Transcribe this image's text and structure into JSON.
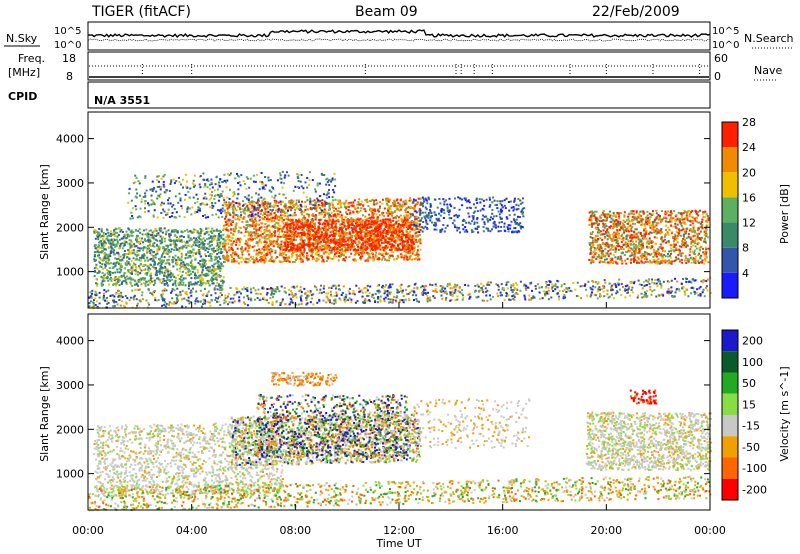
{
  "header": {
    "radar": "TIGER (fitACF)",
    "beam": "Beam 09",
    "date": "22/Feb/2009"
  },
  "status_panels": {
    "nsky_label": "N.Sky",
    "nsearch_label": "N.Search",
    "noise_ticks": [
      "10^5",
      "10^0"
    ],
    "freq_label_1": "Freq.",
    "freq_label_2": "[MHz]",
    "freq_ticks": [
      "18",
      "8"
    ],
    "nave_label": "Nave",
    "nave_ticks": [
      "60",
      "0"
    ],
    "cpid_label": "CPID",
    "cpid_value": "N/A 3551"
  },
  "chart_data": [
    {
      "type": "heatmap",
      "name": "power",
      "ylabel": "Slant Range [km]",
      "ylim": [
        180,
        4600
      ],
      "yticks": [
        "1000",
        "2000",
        "3000",
        "4000"
      ],
      "colorbar_label": "Power [dB]",
      "colorbar_ticks": [
        "4",
        "8",
        "12",
        "16",
        "20",
        "24",
        "28"
      ],
      "colors": [
        "#1a1aff",
        "#3355aa",
        "#3a8a6a",
        "#5db060",
        "#f0c000",
        "#f08a00",
        "#ff2000"
      ]
    },
    {
      "type": "heatmap",
      "name": "velocity",
      "ylabel": "Slant Range [km]",
      "ylim": [
        180,
        4600
      ],
      "yticks": [
        "1000",
        "2000",
        "3000",
        "4000"
      ],
      "colorbar_label": "Velocity [m s^-1]",
      "colorbar_ticks": [
        "200",
        "100",
        "50",
        "15",
        "-15",
        "-50",
        "-100",
        "-200"
      ],
      "colors": [
        "#1a1acc",
        "#0a5a2a",
        "#22aa22",
        "#88dd44",
        "#c8c8c4",
        "#f0a000",
        "#ff6600",
        "#ff0000"
      ],
      "xlabel": "Time UT",
      "xticks": [
        "00:00",
        "04:00",
        "08:00",
        "12:00",
        "16:00",
        "20:00",
        "00:00"
      ],
      "xlim_hours": [
        0,
        24
      ]
    }
  ]
}
